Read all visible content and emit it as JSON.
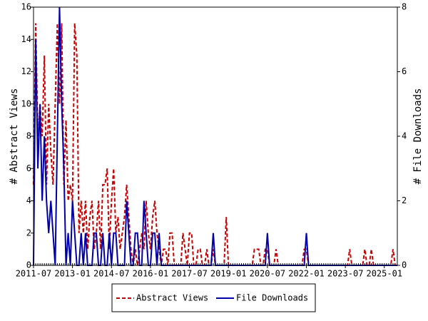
{
  "chart_data": {
    "type": "line",
    "y_label": "# Abstract Views",
    "y2_label": "# File Downloads",
    "x": [
      "2011-07",
      "2011-08",
      "2011-09",
      "2011-10",
      "2011-11",
      "2011-12",
      "2012-01",
      "2012-02",
      "2012-03",
      "2012-04",
      "2012-05",
      "2012-06",
      "2012-07",
      "2012-08",
      "2012-09",
      "2012-10",
      "2012-11",
      "2012-12",
      "2013-01",
      "2013-02",
      "2013-03",
      "2013-04",
      "2013-05",
      "2013-06",
      "2013-07",
      "2013-08",
      "2013-09",
      "2013-10",
      "2013-11",
      "2013-12",
      "2014-01",
      "2014-02",
      "2014-03",
      "2014-04",
      "2014-05",
      "2014-06",
      "2014-07",
      "2014-08",
      "2014-09",
      "2014-10",
      "2014-11",
      "2014-12",
      "2015-01",
      "2015-02",
      "2015-03",
      "2015-04",
      "2015-05",
      "2015-06",
      "2015-07",
      "2015-08",
      "2015-09",
      "2015-10",
      "2015-11",
      "2015-12",
      "2016-01",
      "2016-02",
      "2016-03",
      "2016-04",
      "2016-05",
      "2016-06",
      "2016-07",
      "2016-08",
      "2016-09",
      "2016-10",
      "2016-11",
      "2016-12",
      "2017-01",
      "2017-02",
      "2017-03",
      "2017-04",
      "2017-05",
      "2017-06",
      "2017-07",
      "2017-08",
      "2017-09",
      "2017-10",
      "2017-11",
      "2017-12",
      "2018-01",
      "2018-02",
      "2018-03",
      "2018-04",
      "2018-05",
      "2018-06",
      "2018-07",
      "2018-08",
      "2018-09",
      "2018-10",
      "2018-11",
      "2018-12",
      "2019-01",
      "2019-02",
      "2019-03",
      "2019-04",
      "2019-05",
      "2019-06",
      "2019-07",
      "2019-08",
      "2019-09",
      "2019-10",
      "2019-11",
      "2019-12",
      "2020-01",
      "2020-02",
      "2020-03",
      "2020-04",
      "2020-05",
      "2020-06",
      "2020-07",
      "2020-08",
      "2020-09",
      "2020-10",
      "2020-11",
      "2020-12",
      "2021-01",
      "2021-02",
      "2021-03",
      "2021-04",
      "2021-05",
      "2021-06",
      "2021-07",
      "2021-08",
      "2021-09",
      "2021-10",
      "2021-11",
      "2021-12",
      "2022-01",
      "2022-02",
      "2022-03",
      "2022-04",
      "2022-05",
      "2022-06",
      "2022-07",
      "2022-08",
      "2022-09",
      "2022-10",
      "2022-11",
      "2022-12",
      "2023-01",
      "2023-02",
      "2023-03",
      "2023-04",
      "2023-05",
      "2023-06",
      "2023-07",
      "2023-08",
      "2023-09",
      "2023-10",
      "2023-11",
      "2023-12",
      "2024-01",
      "2024-02",
      "2024-03",
      "2024-04",
      "2024-05",
      "2024-06",
      "2024-07",
      "2024-08",
      "2024-09",
      "2024-10",
      "2024-11",
      "2024-12",
      "2025-01",
      "2025-02",
      "2025-03",
      "2025-04",
      "2025-05",
      "2025-06",
      "2025-07"
    ],
    "xticks": [
      "2011-07",
      "2013-01",
      "2014-07",
      "2016-01",
      "2017-07",
      "2019-01",
      "2020-07",
      "2022-01",
      "2023-07",
      "2025-01"
    ],
    "ylim": [
      0,
      16
    ],
    "yticks": [
      0,
      2,
      4,
      6,
      8,
      10,
      12,
      14,
      16
    ],
    "y2lim": [
      0,
      8
    ],
    "y2ticks": [
      0,
      2,
      4,
      6,
      8
    ],
    "legend": "bottom",
    "series": [
      {
        "name": "Abstract Views",
        "color": "#cc0000",
        "dash": true,
        "values": [
          5,
          15,
          8,
          10,
          8,
          13,
          5,
          10,
          7,
          5,
          10,
          15,
          10,
          15,
          5,
          9,
          4,
          5,
          4,
          15,
          13,
          2,
          4,
          2,
          4,
          1,
          3,
          4,
          1,
          2,
          4,
          1,
          5,
          5,
          6,
          1,
          4,
          6,
          2,
          3,
          1,
          2,
          3,
          5,
          3,
          1,
          0,
          1,
          0,
          1,
          2,
          1,
          4,
          2,
          1,
          3,
          4,
          2,
          1,
          0,
          1,
          1,
          0,
          2,
          2,
          0,
          0,
          0,
          0,
          2,
          1,
          0,
          2,
          2,
          0,
          0,
          1,
          1,
          0,
          0,
          1,
          0,
          0,
          1,
          0,
          0,
          0,
          0,
          0,
          3,
          0,
          0,
          0,
          0,
          0,
          0,
          0,
          0,
          0,
          0,
          0,
          0,
          1,
          1,
          1,
          0,
          0,
          1,
          1,
          0,
          0,
          0,
          1,
          0,
          0,
          0,
          0,
          0,
          0,
          0,
          0,
          0,
          0,
          0,
          0,
          1,
          1,
          0,
          0,
          0,
          0,
          0,
          0,
          0,
          0,
          0,
          0,
          0,
          0,
          0,
          0,
          0,
          0,
          0,
          0,
          0,
          1,
          0,
          0,
          0,
          0,
          0,
          0,
          1,
          0,
          0,
          1,
          0,
          0,
          0,
          0,
          0,
          0,
          0,
          0,
          0,
          1,
          0,
          0
        ]
      },
      {
        "name": "File Downloads",
        "color": "#0000aa",
        "axis": "y2",
        "values": [
          0,
          7,
          3,
          5,
          2,
          4,
          2,
          1,
          2,
          1,
          0,
          4,
          8,
          5,
          3,
          0,
          1,
          0,
          2,
          1,
          0,
          0,
          1,
          0,
          1,
          0,
          0,
          0,
          1,
          1,
          0,
          0,
          1,
          0,
          0,
          1,
          0,
          1,
          1,
          0,
          0,
          0,
          0,
          2,
          1,
          0,
          0,
          1,
          1,
          0,
          0,
          2,
          1,
          0,
          0,
          1,
          1,
          0,
          1,
          0,
          0,
          0,
          0,
          0,
          0,
          0,
          0,
          0,
          0,
          0,
          0,
          0,
          0,
          0,
          0,
          0,
          0,
          0,
          0,
          0,
          0,
          0,
          0,
          1,
          0,
          0,
          0,
          0,
          0,
          0,
          0,
          0,
          0,
          0,
          0,
          0,
          0,
          0,
          0,
          0,
          0,
          0,
          0,
          0,
          0,
          0,
          0,
          0,
          1,
          0,
          0,
          0,
          0,
          0,
          0,
          0,
          0,
          0,
          0,
          0,
          0,
          0,
          0,
          0,
          0,
          0,
          1,
          0,
          0,
          0,
          0,
          0,
          0,
          0,
          0,
          0,
          0,
          0,
          0,
          0,
          0,
          0,
          0,
          0,
          0,
          0,
          0,
          0,
          0,
          0,
          0,
          0,
          0,
          0,
          0,
          0,
          0,
          0,
          0,
          0,
          0,
          0,
          0,
          0,
          0,
          0,
          0,
          0,
          0
        ]
      }
    ]
  }
}
